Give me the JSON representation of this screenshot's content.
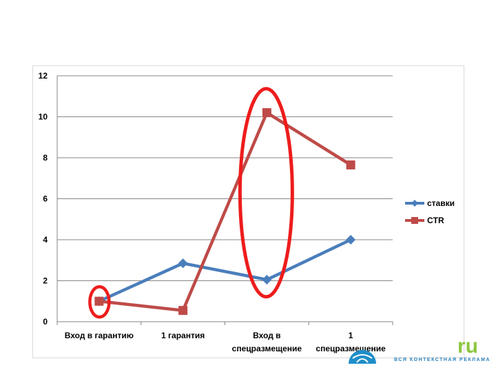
{
  "chart_data": {
    "type": "line",
    "categories": [
      [
        "Вход в гарантию"
      ],
      [
        "1 гарантия"
      ],
      [
        "Вход в",
        "спецразмещение"
      ],
      [
        "1",
        "спецразмещение"
      ]
    ],
    "ylim": [
      0,
      12
    ],
    "yticks": [
      0,
      2,
      4,
      6,
      8,
      10,
      12
    ],
    "grid": true,
    "legend_position": "right",
    "series": [
      {
        "name": "ставки",
        "values": [
          1,
          2.85,
          2.05,
          4
        ],
        "color": "#4a7ebb",
        "marker": "diamond"
      },
      {
        "name": "CTR",
        "values": [
          1,
          0.55,
          10.2,
          7.65
        ],
        "color": "#be4b48",
        "marker": "square"
      }
    ],
    "annotations": [
      {
        "type": "ellipse-highlight",
        "category_index": 0,
        "color": "#ee1c1c"
      },
      {
        "type": "ellipse-highlight",
        "category_index": 2,
        "color": "#ee1c1c"
      }
    ]
  },
  "branding": {
    "logo_suffix": "ru",
    "tagline": "ВСЯ КОНТЕКСТНАЯ РЕКЛАМА",
    "ru_color": "#8cc63f",
    "tagline_color": "#2a7fb8",
    "globe_color": "#1f8fc9"
  }
}
